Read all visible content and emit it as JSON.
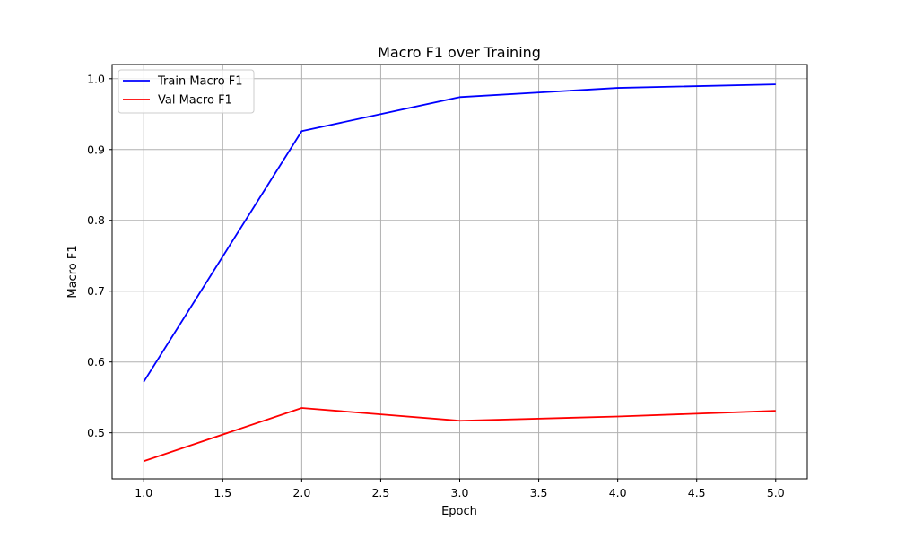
{
  "chart_data": {
    "type": "line",
    "title": "Macro F1 over Training",
    "xlabel": "Epoch",
    "ylabel": "Macro F1",
    "xlim": [
      0.8,
      5.2
    ],
    "ylim": [
      0.435,
      1.02
    ],
    "xticks": [
      "1.0",
      "1.5",
      "2.0",
      "2.5",
      "3.0",
      "3.5",
      "4.0",
      "4.5",
      "5.0"
    ],
    "yticks": [
      "0.5",
      "0.6",
      "0.7",
      "0.8",
      "0.9",
      "1.0"
    ],
    "grid": true,
    "legend_position": "upper-left",
    "x": [
      1,
      2,
      3,
      4,
      5
    ],
    "series": [
      {
        "name": "Train Macro F1",
        "color": "#0000ff",
        "values": [
          0.572,
          0.926,
          0.974,
          0.987,
          0.992
        ]
      },
      {
        "name": "Val Macro F1",
        "color": "#ff0000",
        "values": [
          0.46,
          0.535,
          0.517,
          0.523,
          0.531
        ]
      }
    ]
  }
}
